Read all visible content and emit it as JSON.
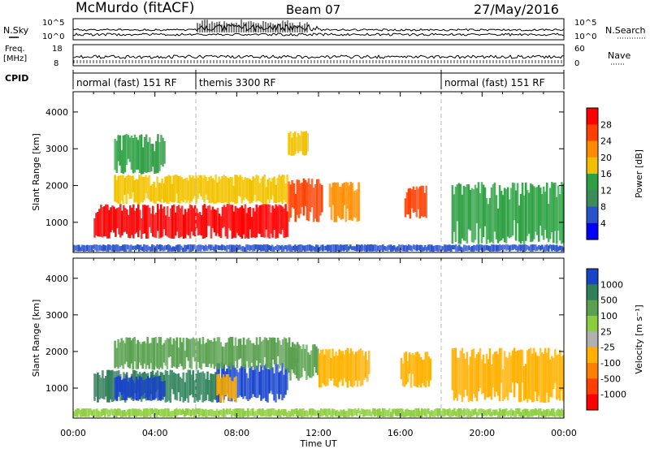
{
  "header": {
    "station": "McMurdo (fitACF)",
    "beam": "Beam 07",
    "date": "27/May/2016"
  },
  "strips": {
    "nsky_label": "N.Sky",
    "nsky_ticks": [
      "10^5",
      "10^0"
    ],
    "nsearch_label": "N.Search",
    "nsearch_ticks": [
      "10^5",
      "10^0"
    ],
    "freq_label": [
      "Freq.",
      "[MHz]"
    ],
    "freq_ticks": [
      "18",
      "8"
    ],
    "nave_label": "Nave",
    "nave_ticks": [
      "60",
      "0"
    ],
    "cpid_label": "CPID",
    "cpid_segments": [
      {
        "label": "normal (fast) 151 RF",
        "start_h": 0,
        "end_h": 6
      },
      {
        "label": "themis 3300 RF",
        "start_h": 6,
        "end_h": 18
      },
      {
        "label": "normal (fast) 151 RF",
        "start_h": 18,
        "end_h": 24
      }
    ]
  },
  "colors": {
    "power_scale": [
      "#0000ff",
      "#2a52c8",
      "#3c8c5a",
      "#2ea043",
      "#f0c000",
      "#ff8c00",
      "#ff4000",
      "#ff0000"
    ],
    "velocity_scale": [
      "#1a44c8",
      "#2f7f5a",
      "#5aa050",
      "#8ccc40",
      "#b0b0b0",
      "#ffb000",
      "#ff8000",
      "#ff4000",
      "#ff0000"
    ]
  },
  "chart_data": [
    {
      "type": "heatmap",
      "title": "",
      "xlabel": "",
      "ylabel": "Slant Range [km]",
      "x_ticks": [
        "00:00",
        "04:00",
        "08:00",
        "12:00",
        "16:00",
        "20:00",
        "00:00"
      ],
      "xlim": [
        0,
        24
      ],
      "ylim": [
        180,
        4550
      ],
      "y_ticks": [
        1000,
        2000,
        3000,
        4000
      ],
      "colorbar": {
        "label": "Power [dB]",
        "ticks": [
          "4",
          "8",
          "12",
          "16",
          "20",
          "24",
          "28"
        ]
      },
      "regions": [
        {
          "t0": 1.0,
          "t1": 10.5,
          "r0": 550,
          "r1": 1500,
          "value": "28"
        },
        {
          "t0": 2.0,
          "t1": 10.5,
          "r0": 1500,
          "r1": 2300,
          "value": "16"
        },
        {
          "t0": 2.0,
          "t1": 4.5,
          "r0": 2300,
          "r1": 3400,
          "value": "12"
        },
        {
          "t0": 10.5,
          "t1": 12.2,
          "r0": 1000,
          "r1": 2200,
          "value": "24"
        },
        {
          "t0": 10.5,
          "t1": 11.5,
          "r0": 2800,
          "r1": 3500,
          "value": "16"
        },
        {
          "t0": 12.5,
          "t1": 14.0,
          "r0": 1000,
          "r1": 2100,
          "value": "20"
        },
        {
          "t0": 16.2,
          "t1": 17.3,
          "r0": 1100,
          "r1": 2000,
          "value": "24"
        },
        {
          "t0": 18.5,
          "t1": 24.0,
          "r0": 400,
          "r1": 2100,
          "value": "12"
        },
        {
          "t0": 0.0,
          "t1": 24.0,
          "r0": 200,
          "r1": 400,
          "value": "4"
        }
      ]
    },
    {
      "type": "heatmap",
      "title": "",
      "xlabel": "Time UT",
      "ylabel": "Slant Range [km]",
      "x_ticks": [
        "00:00",
        "04:00",
        "08:00",
        "12:00",
        "16:00",
        "20:00",
        "00:00"
      ],
      "xlim": [
        0,
        24
      ],
      "ylim": [
        180,
        4550
      ],
      "y_ticks": [
        1000,
        2000,
        3000,
        4000
      ],
      "colorbar": {
        "label": "Velocity [m s⁻¹]",
        "ticks": [
          "1000",
          "500",
          "100",
          "25",
          "-25",
          "-100",
          "-500",
          "-1000"
        ]
      },
      "regions": [
        {
          "t0": 1.0,
          "t1": 7.0,
          "r0": 600,
          "r1": 1500,
          "value": "500"
        },
        {
          "t0": 2.0,
          "t1": 4.5,
          "r0": 650,
          "r1": 1350,
          "value": "1000"
        },
        {
          "t0": 7.0,
          "t1": 10.5,
          "r0": 600,
          "r1": 1700,
          "value": "1000"
        },
        {
          "t0": 7.0,
          "t1": 8.0,
          "r0": 600,
          "r1": 1400,
          "value": "-100"
        },
        {
          "t0": 2.0,
          "t1": 11.0,
          "r0": 1500,
          "r1": 2400,
          "value": "100"
        },
        {
          "t0": 10.5,
          "t1": 12.0,
          "r0": 1200,
          "r1": 2200,
          "value": "100"
        },
        {
          "t0": 12.0,
          "t1": 14.5,
          "r0": 1000,
          "r1": 2100,
          "value": "-100"
        },
        {
          "t0": 16.0,
          "t1": 17.5,
          "r0": 1000,
          "r1": 2000,
          "value": "-100"
        },
        {
          "t0": 18.5,
          "t1": 24.0,
          "r0": 600,
          "r1": 2100,
          "value": "-100"
        },
        {
          "t0": 0.0,
          "t1": 24.0,
          "r0": 200,
          "r1": 450,
          "value": "25"
        }
      ]
    }
  ]
}
